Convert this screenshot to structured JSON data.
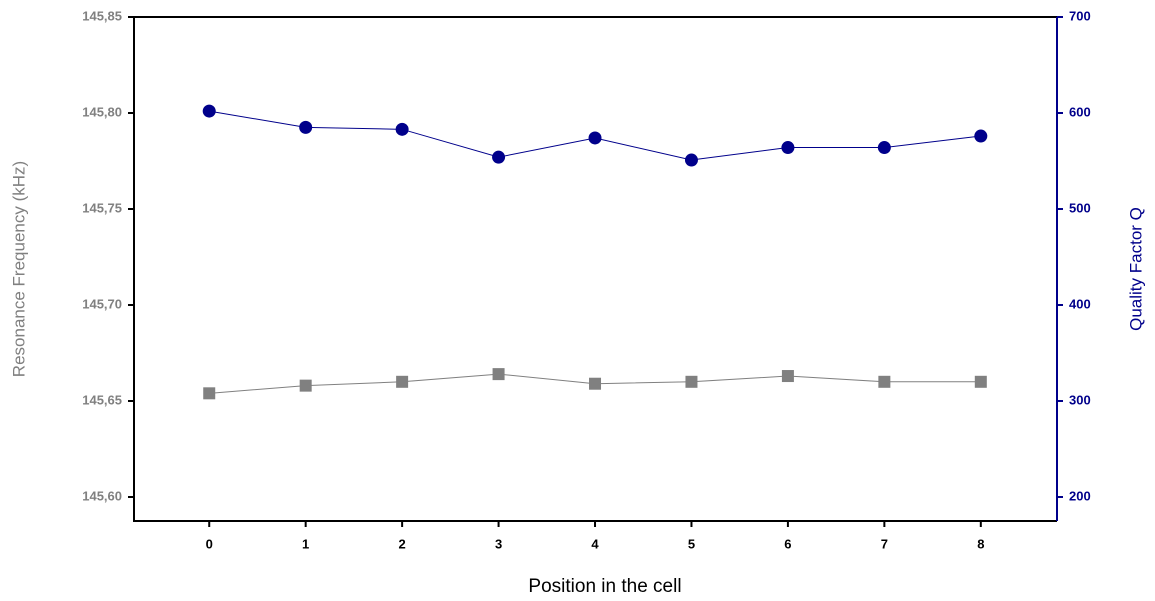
{
  "chart_data": {
    "type": "line",
    "x_label": "Position in the cell",
    "y_label": "Resonance Frequency (kHz)",
    "y2_label": "Quality Factor Q",
    "x": [
      0,
      1,
      2,
      3,
      4,
      5,
      6,
      7,
      8
    ],
    "xlim": [
      -0.78,
      8.79
    ],
    "xticks": [
      0,
      1,
      2,
      3,
      4,
      5,
      6,
      7,
      8
    ],
    "ylim": [
      145.5875,
      145.85
    ],
    "yticks": [
      {
        "value": 145.6,
        "label": "145,60"
      },
      {
        "value": 145.65,
        "label": "145,65"
      },
      {
        "value": 145.7,
        "label": "145,70"
      },
      {
        "value": 145.75,
        "label": "145,75"
      },
      {
        "value": 145.8,
        "label": "145,80"
      },
      {
        "value": 145.85,
        "label": "145,85"
      }
    ],
    "y2lim": [
      175,
      700
    ],
    "y2ticks": [
      200,
      300,
      400,
      500,
      600,
      700
    ],
    "series": [
      {
        "color": "#808080",
        "marker": "square",
        "values": [
          145.654,
          145.658,
          145.66,
          145.664,
          145.659,
          145.66,
          145.663,
          145.66,
          145.66
        ]
      },
      {
        "color": "#00008b",
        "marker": "circle",
        "axis": "y2",
        "values": [
          602,
          585,
          583,
          554,
          574,
          551,
          564,
          564,
          576
        ]
      }
    ]
  }
}
